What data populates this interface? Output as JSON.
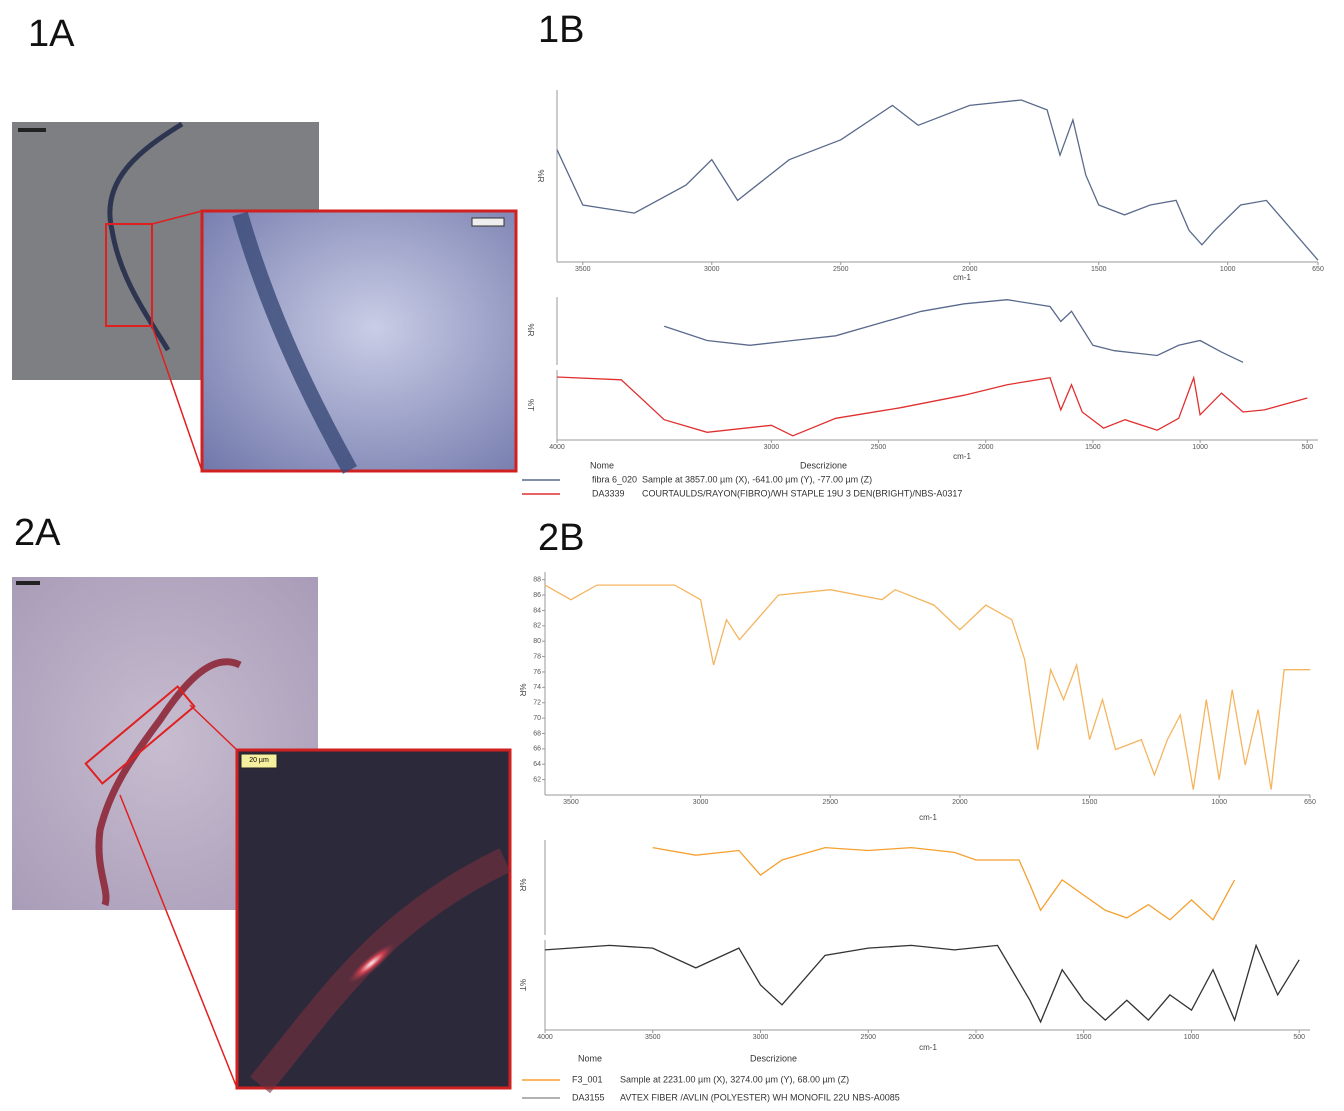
{
  "panels": {
    "a1": "1A",
    "b1": "1B",
    "a2": "2A",
    "b2": "2B"
  },
  "scale_bars": {
    "inset_2a": "20 µm"
  },
  "legend_1b": {
    "header": [
      "Nome",
      "Descrizione"
    ],
    "rows": [
      [
        "fibra 6_020",
        "Sample at 3857.00 µm (X), -641.00 µm (Y), -77.00 µm (Z)"
      ],
      [
        "DA3339",
        "COURTAULDS/RAYON(FIBRO)/WH STAPLE 19U 3 DEN(BRIGHT)/NBS-A0317"
      ]
    ]
  },
  "legend_2b": {
    "header": [
      "Nome",
      "Descrizione"
    ],
    "rows": [
      [
        "F3_001",
        "Sample at 2231.00 µm (X), 3274.00 µm (Y), 68.00 µm (Z)"
      ],
      [
        "DA3155",
        "AVTEX FIBER /AVLIN (POLYESTER) WH MONOFIL 22U NBS-A0085"
      ]
    ]
  },
  "chart_data": [
    {
      "type": "line",
      "y_label": "%R",
      "x_label": "cm-1",
      "color": "#5a6a8c",
      "x": [
        3600,
        3500,
        3300,
        3100,
        3000,
        2900,
        2700,
        2500,
        2300,
        2200,
        2000,
        1800,
        1700,
        1650,
        1600,
        1550,
        1500,
        1400,
        1300,
        1200,
        1150,
        1100,
        1050,
        950,
        850,
        750,
        650
      ],
      "values": [
        43.4,
        37.3,
        36.4,
        39.5,
        42.3,
        37.8,
        42.3,
        44.5,
        48.3,
        46.1,
        48.3,
        48.9,
        47.8,
        42.8,
        46.7,
        40.6,
        37.3,
        36.2,
        37.3,
        37.8,
        34.5,
        32.9,
        34.5,
        37.3,
        37.8,
        34.5,
        31.2
      ],
      "xlim": [
        3600,
        650
      ],
      "xticks": [
        3500,
        3000,
        2500,
        2000,
        1500,
        1000,
        650
      ],
      "ylim": [
        31,
        50
      ]
    },
    {
      "type": "line",
      "y_label": "%R",
      "color": "#5a6a8c",
      "x": [
        3500,
        3300,
        3100,
        2900,
        2700,
        2500,
        2300,
        2100,
        1900,
        1700,
        1650,
        1600,
        1500,
        1400,
        1200,
        1100,
        1000,
        900,
        800
      ],
      "values": [
        57,
        36,
        29,
        36,
        43,
        61,
        79,
        90,
        96,
        86,
        64,
        79,
        29,
        21,
        14,
        29,
        36,
        19,
        4
      ],
      "xlim": [
        4000,
        450
      ],
      "ylim": [
        0,
        100
      ]
    },
    {
      "type": "line",
      "y_label": "%T",
      "x_label": "cm-1",
      "color": "#e03030",
      "x": [
        4000,
        3700,
        3500,
        3300,
        3000,
        2900,
        2700,
        2400,
        2100,
        1900,
        1700,
        1650,
        1600,
        1550,
        1450,
        1350,
        1200,
        1100,
        1030,
        1000,
        900,
        800,
        700,
        500
      ],
      "values": [
        90,
        86,
        29,
        11,
        21,
        6,
        31,
        46,
        64,
        79,
        89,
        43,
        79,
        40,
        17,
        29,
        14,
        31,
        89,
        36,
        67,
        40,
        43,
        60
      ],
      "xlim": [
        4000,
        450
      ],
      "xticks": [
        4000,
        3000,
        2500,
        2000,
        1500,
        1000,
        500
      ],
      "ylim": [
        0,
        100
      ]
    },
    {
      "type": "line",
      "y_label": "%R",
      "x_label": "cm-1",
      "color": "#f5b560",
      "x": [
        3600,
        3500,
        3400,
        3300,
        3100,
        3000,
        2950,
        2900,
        2850,
        2700,
        2500,
        2300,
        2250,
        2100,
        2000,
        1900,
        1800,
        1750,
        1700,
        1650,
        1600,
        1550,
        1500,
        1450,
        1400,
        1300,
        1250,
        1200,
        1150,
        1100,
        1050,
        1000,
        950,
        900,
        850,
        800,
        750,
        650
      ],
      "values": [
        87.3,
        85.4,
        87.3,
        87.3,
        87.3,
        85.4,
        76.9,
        82.8,
        80.2,
        86.0,
        86.7,
        85.4,
        86.7,
        84.7,
        81.5,
        84.7,
        82.8,
        77.6,
        65.9,
        76.3,
        72.4,
        76.9,
        67.2,
        72.4,
        65.9,
        67.2,
        62.6,
        67.2,
        70.4,
        60.7,
        72.4,
        62.0,
        73.7,
        63.9,
        71.1,
        60.7,
        76.3,
        76.3
      ],
      "xlim": [
        3600,
        650
      ],
      "xticks": [
        3500,
        3000,
        2500,
        2000,
        1500,
        1000,
        650
      ],
      "ylim": [
        60,
        89
      ],
      "yticks": [
        88,
        86,
        84,
        82,
        80,
        78,
        76,
        74,
        72,
        70,
        68,
        66,
        64,
        62
      ]
    },
    {
      "type": "line",
      "y_label": "%R",
      "color": "#f5a030",
      "x": [
        3500,
        3300,
        3100,
        3000,
        2900,
        2700,
        2500,
        2300,
        2100,
        2000,
        1800,
        1750,
        1700,
        1600,
        1500,
        1400,
        1300,
        1200,
        1100,
        1000,
        900,
        800
      ],
      "values": [
        92,
        84,
        89,
        63,
        79,
        92,
        89,
        92,
        87,
        79,
        79,
        53,
        26,
        58,
        42,
        26,
        18,
        32,
        16,
        37,
        16,
        58
      ],
      "xlim": [
        4000,
        450
      ],
      "ylim": [
        0,
        100
      ]
    },
    {
      "type": "line",
      "y_label": "%T",
      "x_label": "cm-1",
      "color": "#333333",
      "x": [
        4000,
        3700,
        3500,
        3300,
        3100,
        3000,
        2900,
        2700,
        2500,
        2300,
        2100,
        1900,
        1750,
        1700,
        1600,
        1500,
        1400,
        1300,
        1200,
        1100,
        1000,
        900,
        800,
        700,
        600,
        500
      ],
      "values": [
        89,
        94,
        91,
        69,
        91,
        50,
        28,
        83,
        91,
        94,
        89,
        94,
        33,
        9,
        67,
        33,
        11,
        33,
        11,
        39,
        22,
        67,
        11,
        94,
        39,
        78
      ],
      "xlim": [
        4000,
        450
      ],
      "xticks": [
        4000,
        3500,
        3000,
        2500,
        2000,
        1500,
        1000,
        500
      ],
      "ylim": [
        0,
        100
      ]
    }
  ]
}
